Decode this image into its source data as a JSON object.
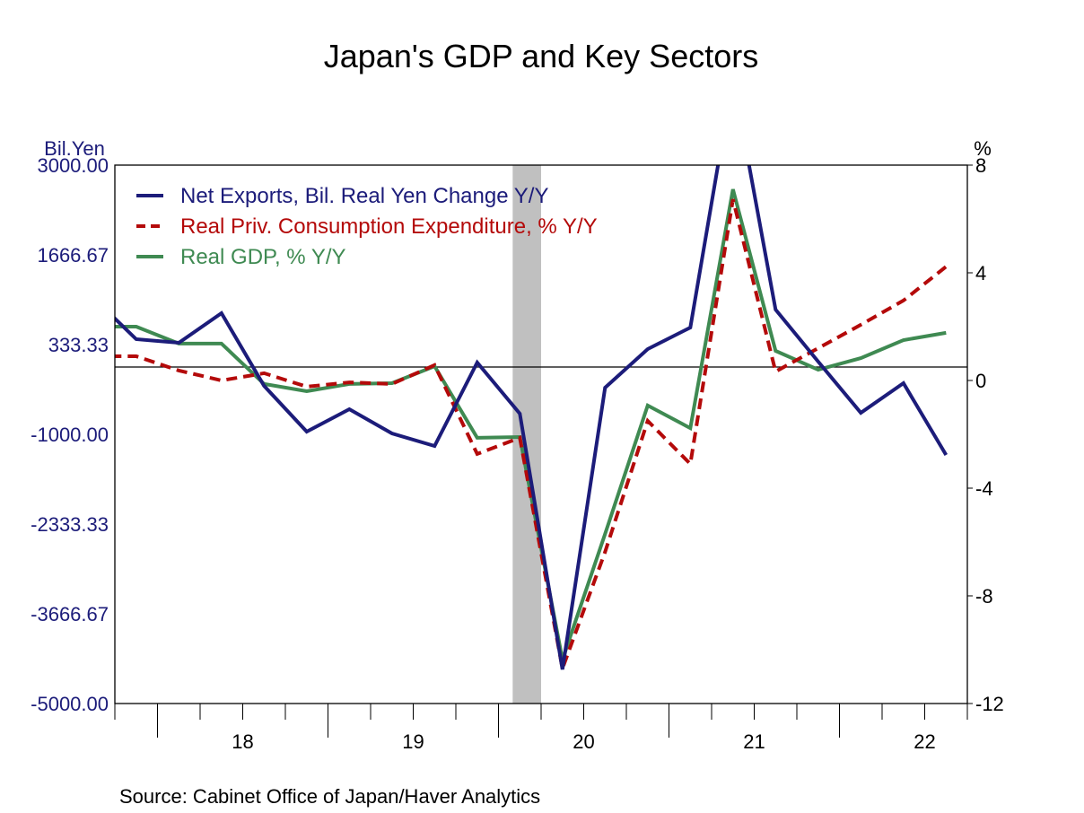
{
  "chart_data": {
    "type": "line",
    "title": "Japan's GDP and Key Sectors",
    "source": "Source:  Cabinet Office of Japan/Haver Analytics",
    "left_axis": {
      "label": "Bil.Yen",
      "range": [
        -5000,
        3000
      ],
      "ticks": [
        "3000.00",
        "1666.67",
        "333.33",
        "-1000.00",
        "-2333.33",
        "-3666.67",
        "-5000.00"
      ],
      "color": "#1c1c7a"
    },
    "right_axis": {
      "label": "%",
      "range": [
        -12,
        8
      ],
      "ticks": [
        "8",
        "4",
        "0",
        "-4",
        "-8",
        "-12"
      ],
      "color": "#000000"
    },
    "x_axis": {
      "range": [
        "2017-10",
        "2022-10"
      ],
      "tick_labels": [
        "18",
        "19",
        "20",
        "21",
        "22"
      ]
    },
    "recession": {
      "start": "2020-02",
      "end": "2020-04",
      "color": "#c0c0c0"
    },
    "legend_position": "top-left",
    "quarters": [
      "2017Q3",
      "2017Q4",
      "2018Q1",
      "2018Q2",
      "2018Q3",
      "2018Q4",
      "2019Q1",
      "2019Q2",
      "2019Q3",
      "2019Q4",
      "2020Q1",
      "2020Q2",
      "2020Q3",
      "2020Q4",
      "2021Q1",
      "2021Q2",
      "2021Q3",
      "2021Q4",
      "2022Q1",
      "2022Q2",
      "2022Q3"
    ],
    "series": [
      {
        "name": "Net Exports, Bil. Real Yen Change Y/Y",
        "axis": "left",
        "color": "#1c1c7a",
        "style": "solid",
        "values": [
          1027,
          413,
          360,
          800,
          -280,
          -960,
          -627,
          -987,
          -1173,
          67,
          -693,
          -4493,
          -307,
          267,
          587,
          4300,
          853,
          80,
          -680,
          -240,
          -1307
        ]
      },
      {
        "name": "Real Priv. Consumption Expenditure, % Y/Y",
        "axis": "right",
        "color": "#b40a0a",
        "style": "dashed",
        "values": [
          0.9,
          0.9,
          0.37,
          0.0,
          0.27,
          -0.23,
          -0.07,
          -0.13,
          0.57,
          -2.73,
          -2.13,
          -10.7,
          -6.37,
          -1.5,
          -3.1,
          6.73,
          0.33,
          1.2,
          2.07,
          2.97,
          4.23
        ]
      },
      {
        "name": "Real GDP, % Y/Y",
        "axis": "right",
        "color": "#3f8a52",
        "style": "solid",
        "values": [
          2.0,
          2.0,
          1.37,
          1.37,
          -0.13,
          -0.4,
          -0.13,
          -0.1,
          0.53,
          -2.13,
          -2.1,
          -10.37,
          -5.7,
          -0.93,
          -1.77,
          7.1,
          1.1,
          0.4,
          0.83,
          1.5,
          1.77
        ]
      }
    ]
  }
}
